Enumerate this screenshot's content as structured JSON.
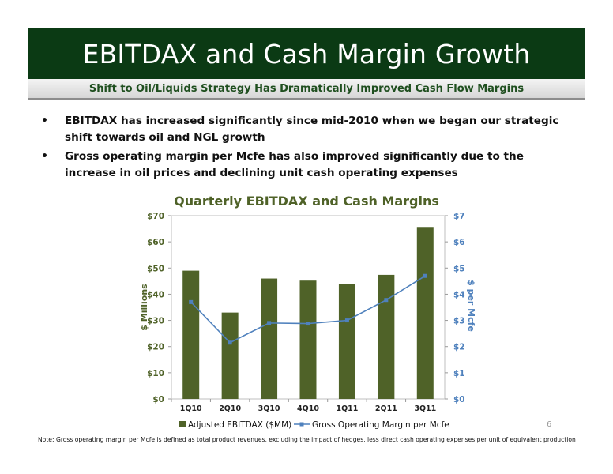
{
  "slide": {
    "title": "EBITDAX and Cash Margin Growth",
    "subtitle": "Shift to Oil/Liquids Strategy Has Dramatically Improved Cash Flow Margins",
    "bullets": [
      "EBITDAX has increased significantly since mid-2010 when we began our strategic shift towards oil and NGL growth",
      "Gross operating margin per Mcfe has also improved significantly due to the increase in oil prices and declining unit cash operating expenses"
    ],
    "bullet_glyph": "•",
    "footnote": "Note: Gross operating margin per Mcfe is defined as total product revenues, excluding the impact of hedges, less direct cash operating expenses per unit of equivalent production",
    "page_number": "6",
    "colors": {
      "title_bg": "#0b3a14",
      "bar": "#4f6228",
      "line": "#4f81bd",
      "chart_title": "#4f6228",
      "left_axis": "#4f6228",
      "right_axis": "#4f81bd"
    }
  },
  "chart_data": {
    "type": "bar",
    "title": "Quarterly EBITDAX and Cash Margins",
    "categories": [
      "1Q10",
      "2Q10",
      "3Q10",
      "4Q10",
      "1Q11",
      "2Q11",
      "3Q11"
    ],
    "ylabel": "$ Millions",
    "y2label": "$ per Mcfe",
    "ylim": [
      0,
      70
    ],
    "y2lim": [
      0,
      7
    ],
    "yticks": [
      "$0",
      "$10",
      "$20",
      "$30",
      "$40",
      "$50",
      "$60",
      "$70"
    ],
    "y2ticks": [
      "$0",
      "$1",
      "$2",
      "$3",
      "$4",
      "$5",
      "$6",
      "$7"
    ],
    "series": [
      {
        "name": "Adjusted EBITDAX ($MM)",
        "type": "bar",
        "axis": "left",
        "values": [
          49,
          33,
          46,
          45.2,
          44,
          47.4,
          65.7
        ]
      },
      {
        "name": "Gross Operating Margin per Mcfe",
        "type": "line",
        "axis": "right",
        "values": [
          3.7,
          2.15,
          2.9,
          2.88,
          3.0,
          3.78,
          4.7
        ]
      }
    ],
    "grid": false,
    "legend": "bottom"
  }
}
